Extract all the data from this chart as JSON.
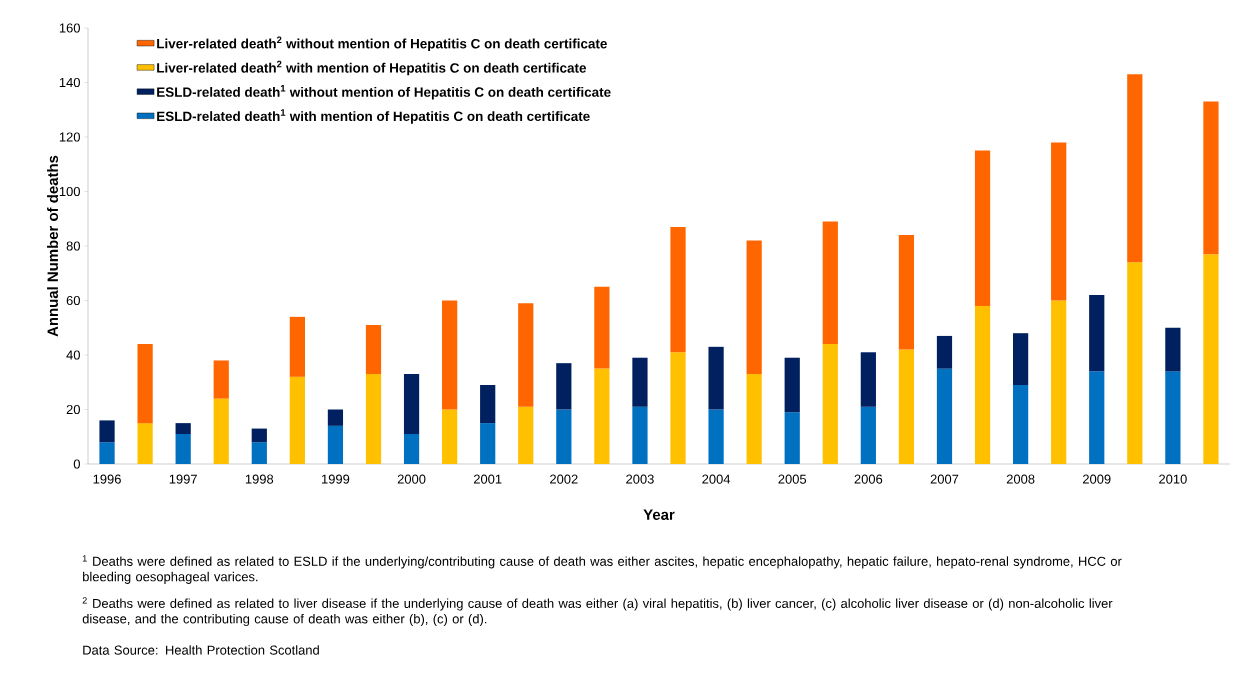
{
  "chart_data": {
    "type": "bar",
    "stacked": true,
    "legend": "top left",
    "grid": false,
    "xlabel": "Year",
    "ylabel": "Annual Number of deaths",
    "categories": [
      "1996",
      null,
      "1997",
      null,
      "1998",
      null,
      "1999",
      null,
      "2000",
      null,
      "2001",
      null,
      "2002",
      null,
      "2003",
      null,
      "2004",
      null,
      "2005",
      null,
      "2006",
      null,
      "2007",
      null,
      "2008",
      null,
      "2009",
      null,
      "2010",
      null
    ],
    "ylim": [
      0,
      160
    ],
    "yticks": [
      0,
      20,
      40,
      60,
      80,
      100,
      120,
      140,
      160
    ],
    "series": [
      {
        "name": "ESLD-related death$^{1}$ with mention of Hepatitis C on death certificate",
        "color": "#0070c0",
        "values": [
          8,
          null,
          11,
          null,
          8,
          null,
          14,
          null,
          11,
          null,
          15,
          null,
          20,
          null,
          21,
          null,
          20,
          null,
          19,
          null,
          21,
          null,
          35,
          null,
          29,
          null,
          34,
          null,
          34,
          null
        ]
      },
      {
        "name": "ESLD-related death$^{1}$ without mention of Hepatitis C on death certificate",
        "color": "#002060",
        "values": [
          8,
          null,
          4,
          null,
          5,
          null,
          6,
          null,
          22,
          null,
          14,
          null,
          17,
          null,
          18,
          null,
          23,
          null,
          20,
          null,
          20,
          null,
          12,
          null,
          19,
          null,
          28,
          null,
          16,
          null
        ]
      },
      {
        "name": "Liver-related death$^{2}$ with mention of Hepatitis C on death certificate",
        "color": "#ffc000",
        "values": [
          null,
          15,
          null,
          24,
          null,
          32,
          null,
          33,
          null,
          20,
          null,
          21,
          null,
          35,
          null,
          41,
          null,
          33,
          null,
          44,
          null,
          42,
          null,
          58,
          null,
          60,
          null,
          74,
          null,
          77
        ]
      },
      {
        "name": "Liver-related death$^{2}$ without mention of Hepatitis C on death certificate",
        "color": "#ff6600",
        "values": [
          null,
          29,
          null,
          14,
          null,
          22,
          null,
          18,
          null,
          40,
          null,
          38,
          null,
          30,
          null,
          46,
          null,
          49,
          null,
          45,
          null,
          42,
          null,
          57,
          null,
          58,
          null,
          69,
          null,
          56
        ]
      }
    ],
    "annotations": [
      "$^{1}$ Deaths were defined as related to ESLD if the underlying/contributing cause of death was either ascites, hepatic encephalopathy, hepatic failure, hepato-renal syndrome, HCC or bleeding oesophageal varices.",
      "$^{2}$ Deaths were defined as related to liver disease if the underlying cause of death was either (a) viral hepatitis, (b) liver cancer, (c) alcoholic liver disease or (d) non-alcoholic liver disease, and the contributing cause of death was either (b), (c) or (d).",
      "Data Source: Health Protection Scotland"
    ]
  }
}
